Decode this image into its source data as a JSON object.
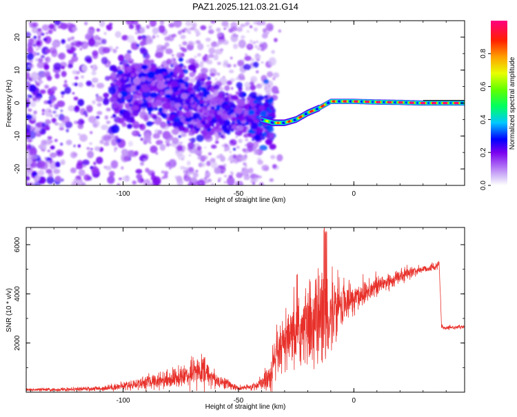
{
  "chart_data": [
    {
      "id": "spectrogram",
      "type": "heatmap",
      "title": "PAZ1.2025.121.03.21.G14",
      "xlabel": "Height of straight line (km)",
      "ylabel": "Frequency (Hz)",
      "xlim": [
        -142,
        48
      ],
      "ylim": [
        -25,
        25
      ],
      "xticks": [
        -100,
        -50,
        0
      ],
      "xtick_labels": [
        "-100",
        "-50",
        "0"
      ],
      "yticks": [
        -20,
        -10,
        0,
        10,
        20
      ],
      "ytick_labels": [
        "-20",
        "-10",
        "0",
        "10",
        "20"
      ],
      "colorbar": {
        "label": "Normalized spectral amplitude",
        "range": [
          0,
          1
        ],
        "ticks": [
          0.0,
          0.2,
          0.4,
          0.6,
          0.8
        ],
        "tick_labels": [
          "0.0",
          "0.2",
          "0.4",
          "0.6",
          "0.8"
        ]
      },
      "ridge": {
        "description": "dominant frequency track",
        "x": [
          -142,
          -110,
          -100,
          -90,
          -80,
          -70,
          -60,
          -50,
          -45,
          -40,
          -35,
          -30,
          -25,
          -20,
          -15,
          -10,
          0,
          10,
          20,
          30,
          48
        ],
        "y": [
          2,
          3,
          4,
          5,
          3,
          -1,
          -2,
          -4,
          -4,
          -5,
          -6,
          -6,
          -5,
          -3,
          -1.5,
          0.5,
          0.5,
          0.3,
          0.2,
          0,
          0
        ],
        "peak_amplitude": [
          0.1,
          0.15,
          0.2,
          0.25,
          0.3,
          0.3,
          0.3,
          0.3,
          0.35,
          0.45,
          0.7,
          0.8,
          0.8,
          0.85,
          0.85,
          0.8,
          0.9,
          0.95,
          0.95,
          1.0,
          1.0
        ]
      }
    },
    {
      "id": "snr",
      "type": "line",
      "xlabel": "Height of straight line (km)",
      "ylabel": "SNR (10 * v/v)",
      "xlim": [
        -142,
        48
      ],
      "ylim": [
        0,
        6700
      ],
      "xticks": [
        -100,
        -50,
        0
      ],
      "xtick_labels": [
        "-100",
        "-50",
        "0"
      ],
      "yticks": [
        2000,
        4000,
        6000
      ],
      "ytick_labels": [
        "2000",
        "4000",
        "6000"
      ],
      "series": [
        {
          "name": "SNR",
          "color": "#e8302a",
          "x": [
            -142,
            -130,
            -120,
            -110,
            -100,
            -90,
            -80,
            -75,
            -70,
            -65,
            -60,
            -55,
            -50,
            -45,
            -40,
            -36,
            -33,
            -30,
            -27,
            -24,
            -21,
            -18,
            -15,
            -12,
            -10,
            -8,
            -5,
            0,
            5,
            10,
            15,
            20,
            25,
            30,
            35,
            37,
            38,
            40,
            45,
            48
          ],
          "y": [
            100,
            100,
            120,
            150,
            250,
            400,
            550,
            600,
            750,
            900,
            500,
            350,
            150,
            200,
            350,
            700,
            1500,
            1900,
            2200,
            2400,
            2700,
            2800,
            3000,
            3300,
            3200,
            3400,
            3600,
            3800,
            4100,
            4300,
            4500,
            4700,
            4900,
            5000,
            5100,
            5200,
            2650,
            2600,
            2650,
            2650
          ],
          "noise": [
            60,
            60,
            70,
            90,
            150,
            250,
            350,
            400,
            500,
            550,
            300,
            200,
            80,
            120,
            250,
            700,
            900,
            1000,
            1100,
            1300,
            1500,
            1700,
            1800,
            2000,
            1500,
            1000,
            800,
            700,
            500,
            450,
            400,
            250,
            200,
            150,
            150,
            150,
            80,
            60,
            60,
            60
          ]
        }
      ]
    }
  ]
}
